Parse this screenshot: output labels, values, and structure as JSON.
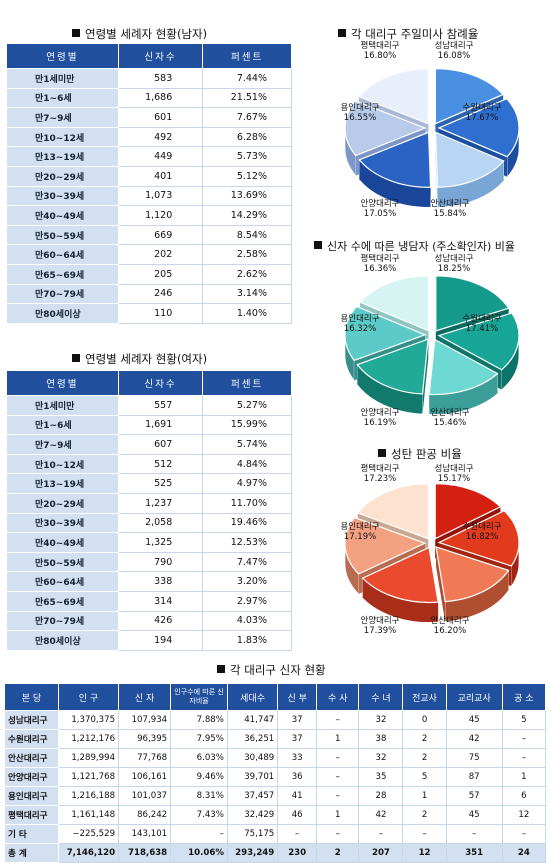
{
  "male": {
    "title": "연령별 세례자 현황(남자)",
    "headers": [
      "연령별",
      "신자수",
      "퍼센트"
    ],
    "rows": [
      [
        "만1세미만",
        "583",
        "7.44%"
      ],
      [
        "만1~6세",
        "1,686",
        "21.51%"
      ],
      [
        "만7~9세",
        "601",
        "7.67%"
      ],
      [
        "만10~12세",
        "492",
        "6.28%"
      ],
      [
        "만13~19세",
        "449",
        "5.73%"
      ],
      [
        "만20~29세",
        "401",
        "5.12%"
      ],
      [
        "만30~39세",
        "1,073",
        "13.69%"
      ],
      [
        "만40~49세",
        "1,120",
        "14.29%"
      ],
      [
        "만50~59세",
        "669",
        "8.54%"
      ],
      [
        "만60~64세",
        "202",
        "2.58%"
      ],
      [
        "만65~69세",
        "205",
        "2.62%"
      ],
      [
        "만70~79세",
        "246",
        "3.14%"
      ],
      [
        "만80세이상",
        "110",
        "1.40%"
      ]
    ]
  },
  "female": {
    "title": "연령별 세례자 현황(여자)",
    "headers": [
      "연령별",
      "신자수",
      "퍼센트"
    ],
    "rows": [
      [
        "만1세미만",
        "557",
        "5.27%"
      ],
      [
        "만1~6세",
        "1,691",
        "15.99%"
      ],
      [
        "만7~9세",
        "607",
        "5.74%"
      ],
      [
        "만10~12세",
        "512",
        "4.84%"
      ],
      [
        "만13~19세",
        "525",
        "4.97%"
      ],
      [
        "만20~29세",
        "1,237",
        "11.70%"
      ],
      [
        "만30~39세",
        "2,058",
        "19.46%"
      ],
      [
        "만40~49세",
        "1,325",
        "12.53%"
      ],
      [
        "만50~59세",
        "790",
        "7.47%"
      ],
      [
        "만60~64세",
        "338",
        "3.20%"
      ],
      [
        "만65~69세",
        "314",
        "2.97%"
      ],
      [
        "만70~79세",
        "426",
        "4.03%"
      ],
      [
        "만80세이상",
        "194",
        "1.83%"
      ]
    ]
  },
  "chart_data": [
    {
      "type": "pie",
      "title": "각 대리구 주일미사 참례율",
      "slices": [
        {
          "label": "성남대리구",
          "value": 16.08,
          "text": "16.08%"
        },
        {
          "label": "수원대리구",
          "value": 17.67,
          "text": "17.67%"
        },
        {
          "label": "안산대리구",
          "value": 15.84,
          "text": "15.84%"
        },
        {
          "label": "안양대리구",
          "value": 17.05,
          "text": "17.05%"
        },
        {
          "label": "용인대리구",
          "value": 16.55,
          "text": "16.55%"
        },
        {
          "label": "평택대리구",
          "value": 16.8,
          "text": "16.80%"
        }
      ],
      "colors": [
        "#4a90e2",
        "#2e6fd0",
        "#b8d6f4",
        "#2a63c4",
        "#b9cbea",
        "#e8eefa"
      ],
      "side_colors": [
        "#2d64b0",
        "#1c4ea0",
        "#7aa6d6",
        "#1a469a",
        "#7d96c8",
        "#aab8d6"
      ]
    },
    {
      "type": "pie",
      "title": "신자 수에 따른 냉담자 (주소확인자) 비율",
      "slices": [
        {
          "label": "성남대리구",
          "value": 18.25,
          "text": "18.25%"
        },
        {
          "label": "수원대리구",
          "value": 17.41,
          "text": "17.41%"
        },
        {
          "label": "안산대리구",
          "value": 15.46,
          "text": "15.46%"
        },
        {
          "label": "안양대리구",
          "value": 16.19,
          "text": "16.19%"
        },
        {
          "label": "용인대리구",
          "value": 16.32,
          "text": "16.32%"
        },
        {
          "label": "평택대리구",
          "value": 16.36,
          "text": "16.36%"
        }
      ],
      "colors": [
        "#159a8c",
        "#17a596",
        "#6ed8d2",
        "#21aa98",
        "#5ccac6",
        "#d6f5f2"
      ],
      "side_colors": [
        "#0b6b60",
        "#0c7468",
        "#3c9e98",
        "#127a6c",
        "#358f8b",
        "#8fc6c1"
      ]
    },
    {
      "type": "pie",
      "title": "성탄 판공 비율",
      "slices": [
        {
          "label": "성남대리구",
          "value": 15.17,
          "text": "15.17%"
        },
        {
          "label": "수원대리구",
          "value": 16.82,
          "text": "16.82%"
        },
        {
          "label": "안산대리구",
          "value": 16.2,
          "text": "16.20%"
        },
        {
          "label": "안양대리구",
          "value": 17.39,
          "text": "17.39%"
        },
        {
          "label": "용인대리구",
          "value": 17.19,
          "text": "17.19%"
        },
        {
          "label": "평택대리구",
          "value": 17.23,
          "text": "17.23%"
        }
      ],
      "colors": [
        "#d42010",
        "#e23a1c",
        "#f07a56",
        "#ea4a2e",
        "#f4a182",
        "#fde3cf"
      ],
      "side_colors": [
        "#951408",
        "#a32410",
        "#b04e32",
        "#a82e1a",
        "#b86d52",
        "#c9a892"
      ]
    }
  ],
  "main_table": {
    "title": "각 대리구 신자 현황",
    "headers": [
      "본 당",
      "인 구",
      "신 자",
      "인구수에 따른 신자비율",
      "세대수",
      "신 부",
      "수 사",
      "수 녀",
      "전교사",
      "교리교사",
      "공 소"
    ],
    "rows": [
      [
        "성남대리구",
        "1,370,375",
        "107,934",
        "7.88%",
        "41,747",
        "37",
        "–",
        "32",
        "0",
        "45",
        "5"
      ],
      [
        "수원대리구",
        "1,212,176",
        "96,395",
        "7.95%",
        "36,251",
        "37",
        "1",
        "38",
        "2",
        "42",
        "–"
      ],
      [
        "안산대리구",
        "1,289,994",
        "77,768",
        "6.03%",
        "30,489",
        "33",
        "–",
        "32",
        "2",
        "75",
        "–"
      ],
      [
        "안양대리구",
        "1,121,768",
        "106,161",
        "9.46%",
        "39,701",
        "36",
        "–",
        "35",
        "5",
        "87",
        "1"
      ],
      [
        "용인대리구",
        "1,216,188",
        "101,037",
        "8.31%",
        "37,457",
        "41",
        "–",
        "28",
        "1",
        "57",
        "6"
      ],
      [
        "평택대리구",
        "1,161,148",
        "86,242",
        "7.43%",
        "32,429",
        "46",
        "1",
        "42",
        "2",
        "45",
        "12"
      ],
      [
        "기 타",
        "−225,529",
        "143,101",
        "–",
        "75,175",
        "–",
        "–",
        "–",
        "–",
        "–",
        "–"
      ]
    ],
    "total": [
      "총 계",
      "7,146,120",
      "718,638",
      "10.06%",
      "293,249",
      "230",
      "2",
      "207",
      "12",
      "351",
      "24"
    ]
  }
}
